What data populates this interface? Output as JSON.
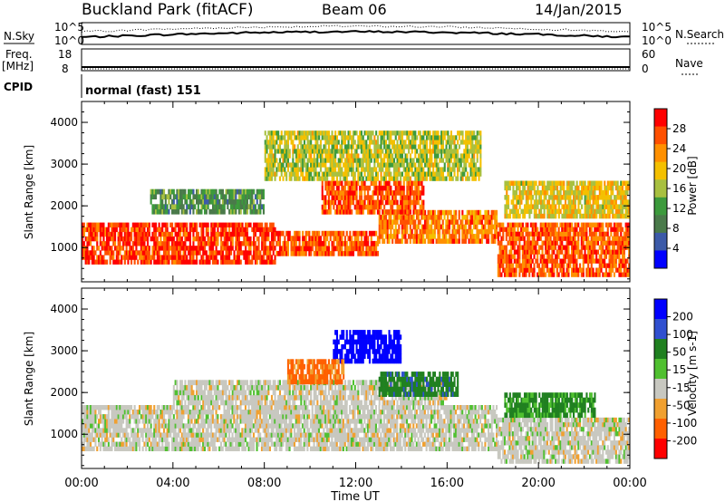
{
  "header": {
    "station": "Buckland Park (fitACF)",
    "beam": "Beam 06",
    "date": "14/Jan/2015"
  },
  "noise_panel": {
    "left_label": "N.Sky",
    "right_label": "N.Search",
    "left_ticks": [
      "10^5",
      "10^0"
    ],
    "right_ticks": [
      "10^5",
      "10^0"
    ]
  },
  "freq_panel": {
    "left_label_1": "Freq.",
    "left_label_2": "[MHz]",
    "left_ticks": [
      "18",
      "8"
    ],
    "right_label": "Nave",
    "right_ticks": [
      "60",
      "0"
    ]
  },
  "cpid_panel": {
    "label": "CPID",
    "mode": "normal (fast) 151"
  },
  "power_panel": {
    "ylabel": "Slant Range [km]",
    "ytick_labels": [
      "1000",
      "2000",
      "3000",
      "4000"
    ],
    "colorbar_label": "Power [dB]",
    "colorbar_ticks": [
      "28",
      "24",
      "20",
      "16",
      "12",
      "8",
      "4"
    ],
    "colorbar_colors": [
      "#ff0000",
      "#ff5000",
      "#ff9000",
      "#f4c000",
      "#a8c040",
      "#3c9a3c",
      "#4a7a4a",
      "#3c5aa8",
      "#0000ff"
    ]
  },
  "velocity_panel": {
    "ylabel": "Slant Range [km]",
    "ytick_labels": [
      "1000",
      "2000",
      "3000",
      "4000"
    ],
    "colorbar_label": "Velocity [m s-1]",
    "colorbar_ticks": [
      "200",
      "100",
      "50",
      "15",
      "-15",
      "-50",
      "-100",
      "-200"
    ],
    "colorbar_colors": [
      "#0000ff",
      "#3050d0",
      "#208020",
      "#50c030",
      "#c8c8c0",
      "#f0a030",
      "#ff6000",
      "#ff0000"
    ]
  },
  "x_axis": {
    "label": "Time UT",
    "tick_labels": [
      "00:00",
      "04:00",
      "08:00",
      "12:00",
      "16:00",
      "20:00",
      "00:00"
    ]
  },
  "chart_data": [
    {
      "type": "heatmap",
      "title": "Power",
      "xlabel": "Time UT",
      "ylabel": "Slant Range [km]",
      "xlim": [
        "00:00",
        "24:00"
      ],
      "ylim": [
        180,
        4500
      ],
      "color_scale": [
        0,
        30
      ],
      "color_unit": "dB",
      "bands": [
        {
          "t0": 0.0,
          "t1": 8.5,
          "r0": 600,
          "r1": 1600,
          "level": 28
        },
        {
          "t0": 8.5,
          "t1": 13.0,
          "r0": 800,
          "r1": 1400,
          "level": 26
        },
        {
          "t0": 13.0,
          "t1": 18.2,
          "r0": 1100,
          "r1": 1900,
          "level": 24
        },
        {
          "t0": 10.5,
          "t1": 15.0,
          "r0": 1800,
          "r1": 2600,
          "level": 26
        },
        {
          "t0": 8.0,
          "t1": 17.5,
          "r0": 2600,
          "r1": 3800,
          "level": 16
        },
        {
          "t0": 18.2,
          "t1": 24.0,
          "r0": 300,
          "r1": 1600,
          "level": 26
        },
        {
          "t0": 3.0,
          "t1": 8.0,
          "r0": 1800,
          "r1": 2400,
          "level": 10
        },
        {
          "t0": 18.5,
          "t1": 24.0,
          "r0": 1700,
          "r1": 2600,
          "level": 18
        }
      ]
    },
    {
      "type": "heatmap",
      "title": "Velocity",
      "xlabel": "Time UT",
      "ylabel": "Slant Range [km]",
      "xlim": [
        "00:00",
        "24:00"
      ],
      "ylim": [
        180,
        4500
      ],
      "color_scale": [
        -200,
        200
      ],
      "color_unit": "m s-1",
      "bands": [
        {
          "t0": 0.0,
          "t1": 18.2,
          "r0": 600,
          "r1": 1700,
          "level": 0
        },
        {
          "t0": 4.0,
          "t1": 16.0,
          "r0": 1700,
          "r1": 2300,
          "level": 0
        },
        {
          "t0": 13.0,
          "t1": 16.5,
          "r0": 1900,
          "r1": 2500,
          "level": 60
        },
        {
          "t0": 11.0,
          "t1": 14.0,
          "r0": 2700,
          "r1": 3500,
          "level": 200
        },
        {
          "t0": 9.0,
          "t1": 11.5,
          "r0": 2200,
          "r1": 2800,
          "level": -60
        },
        {
          "t0": 18.2,
          "t1": 24.0,
          "r0": 300,
          "r1": 1400,
          "level": 0
        },
        {
          "t0": 18.5,
          "t1": 22.5,
          "r0": 1400,
          "r1": 2000,
          "level": 40
        }
      ]
    }
  ]
}
